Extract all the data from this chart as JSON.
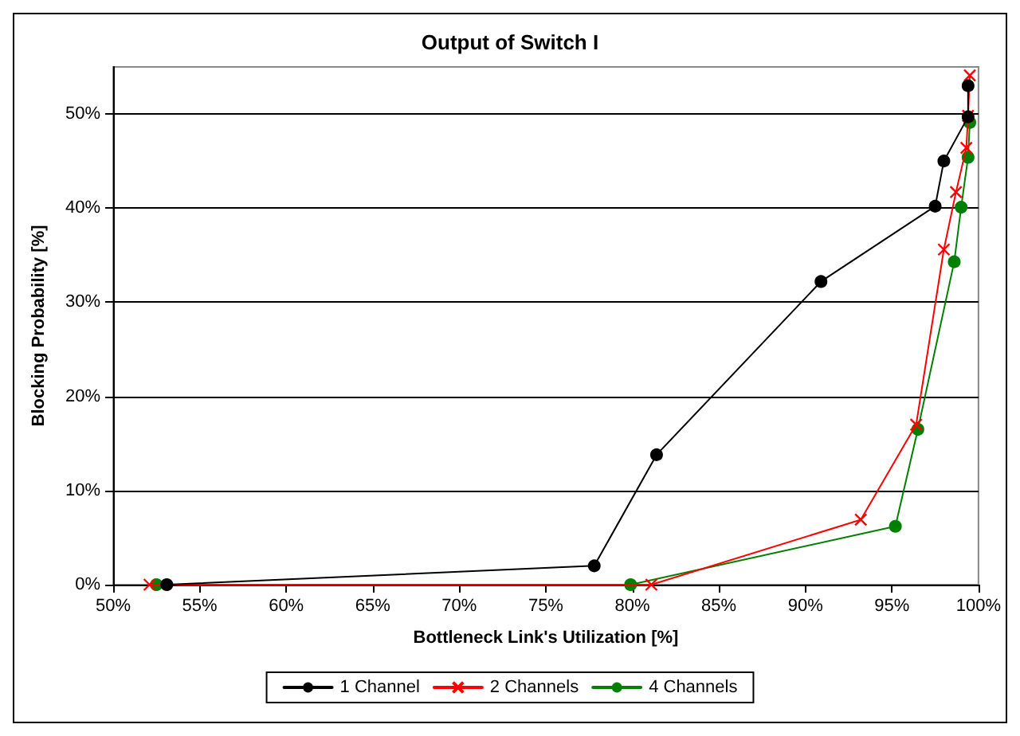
{
  "chart_data": {
    "type": "line",
    "title": "Output of Switch I",
    "xlabel": "Bottleneck Link's Utilization [%]",
    "ylabel": "Blocking Probability [%]",
    "xlim": [
      50,
      100
    ],
    "xticks": [
      {
        "value": 50,
        "label": "50%"
      },
      {
        "value": 55,
        "label": "55%"
      },
      {
        "value": 60,
        "label": "60%"
      },
      {
        "value": 65,
        "label": "65%"
      },
      {
        "value": 70,
        "label": "70%"
      },
      {
        "value": 75,
        "label": "75%"
      },
      {
        "value": 80,
        "label": "80%"
      },
      {
        "value": 85,
        "label": "85%"
      },
      {
        "value": 90,
        "label": "90%"
      },
      {
        "value": 95,
        "label": "95%"
      },
      {
        "value": 100,
        "label": "100%"
      }
    ],
    "ylim": [
      0,
      55
    ],
    "yticks": [
      {
        "value": 0,
        "label": "0%"
      },
      {
        "value": 10,
        "label": "10%"
      },
      {
        "value": 20,
        "label": "20%"
      },
      {
        "value": 30,
        "label": "30%"
      },
      {
        "value": 40,
        "label": "40%"
      },
      {
        "value": 50,
        "label": "50%"
      }
    ],
    "grid": "y",
    "legend": "bottom",
    "line_style": "solid",
    "series": [
      {
        "name": "1 Channel",
        "color": "#000000",
        "marker": "circle",
        "x": [
          53.1,
          77.8,
          81.4,
          90.9,
          97.5,
          98.0,
          99.4,
          99.4
        ],
        "values": [
          0,
          2.0,
          13.8,
          32.2,
          40.2,
          45.0,
          49.7,
          53.0
        ]
      },
      {
        "name": "2 Channels",
        "color": "#ff0000",
        "marker": "cross",
        "x": [
          52.1,
          81.1,
          93.2,
          96.4,
          98.0,
          98.7,
          99.3,
          99.4,
          99.5
        ],
        "values": [
          0,
          0,
          6.9,
          17.0,
          35.6,
          41.7,
          46.4,
          49.8,
          54.1
        ]
      },
      {
        "name": "4 Channels",
        "color": "#008000",
        "marker": "circle",
        "x": [
          52.5,
          79.9,
          95.2,
          96.5,
          98.6,
          99.0,
          99.4,
          99.5
        ],
        "values": [
          0,
          0,
          6.2,
          16.5,
          34.3,
          40.1,
          45.4,
          49.1
        ]
      }
    ]
  }
}
